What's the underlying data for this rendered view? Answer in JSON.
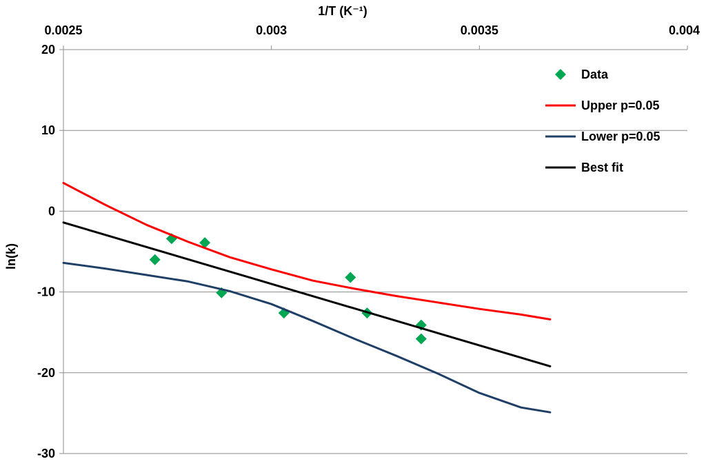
{
  "chart_data": {
    "type": "scatter",
    "title": "",
    "xlabel": "1/T (K⁻¹)",
    "ylabel": "ln(k)",
    "xlim": [
      0.0025,
      0.004
    ],
    "ylim": [
      -30,
      20
    ],
    "x_ticks": [
      {
        "value": 0.0025,
        "label": "0.0025"
      },
      {
        "value": 0.003,
        "label": "0.003"
      },
      {
        "value": 0.0035,
        "label": "0.0035"
      },
      {
        "value": 0.004,
        "label": "0.004"
      }
    ],
    "y_ticks": [
      {
        "value": 20,
        "label": "20"
      },
      {
        "value": 10,
        "label": "10"
      },
      {
        "value": 0,
        "label": "0"
      },
      {
        "value": -10,
        "label": "-10"
      },
      {
        "value": -20,
        "label": "-20"
      },
      {
        "value": -30,
        "label": "-30"
      }
    ],
    "grid": "horizontal",
    "x_axis_position": "top",
    "legend_position": "top-right",
    "series": [
      {
        "name": "Data",
        "kind": "markers",
        "color": "#00a651",
        "marker": "diamond",
        "points": [
          [
            0.00272,
            -6.0
          ],
          [
            0.00276,
            -3.4
          ],
          [
            0.00284,
            -3.9
          ],
          [
            0.00288,
            -10.1
          ],
          [
            0.00303,
            -12.6
          ],
          [
            0.00319,
            -8.2
          ],
          [
            0.00323,
            -12.6
          ],
          [
            0.00336,
            -14.1
          ],
          [
            0.00336,
            -15.8
          ]
        ]
      },
      {
        "name": "Upper p=0.05",
        "kind": "line",
        "color": "#ff0000",
        "points": [
          [
            0.0025,
            3.5
          ],
          [
            0.0026,
            0.8
          ],
          [
            0.0027,
            -1.7
          ],
          [
            0.0028,
            -3.8
          ],
          [
            0.0029,
            -5.7
          ],
          [
            0.003,
            -7.2
          ],
          [
            0.0031,
            -8.6
          ],
          [
            0.0032,
            -9.6
          ],
          [
            0.0033,
            -10.5
          ],
          [
            0.0034,
            -11.3
          ],
          [
            0.0035,
            -12.1
          ],
          [
            0.0036,
            -12.8
          ],
          [
            0.00367,
            -13.4
          ]
        ]
      },
      {
        "name": "Lower p=0.05",
        "kind": "line",
        "color": "#1f3f66",
        "points": [
          [
            0.0025,
            -6.4
          ],
          [
            0.0026,
            -7.1
          ],
          [
            0.0027,
            -7.9
          ],
          [
            0.0028,
            -8.7
          ],
          [
            0.0029,
            -9.9
          ],
          [
            0.003,
            -11.5
          ],
          [
            0.0031,
            -13.6
          ],
          [
            0.0032,
            -15.8
          ],
          [
            0.0033,
            -17.9
          ],
          [
            0.0034,
            -20.1
          ],
          [
            0.0035,
            -22.5
          ],
          [
            0.0036,
            -24.3
          ],
          [
            0.00367,
            -24.9
          ]
        ]
      },
      {
        "name": "Best fit",
        "kind": "line",
        "color": "#000000",
        "points": [
          [
            0.0025,
            -1.4
          ],
          [
            0.00367,
            -19.2
          ]
        ]
      }
    ]
  }
}
